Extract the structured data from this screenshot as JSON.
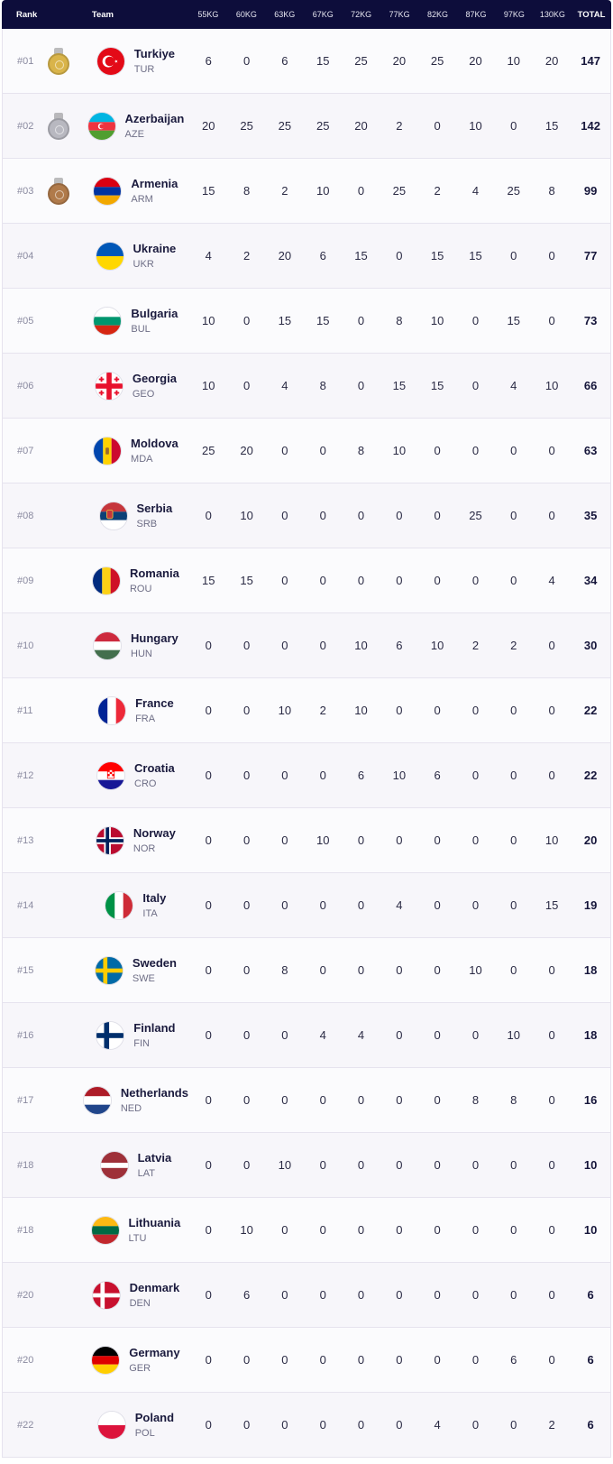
{
  "header": {
    "rank": "Rank",
    "team": "Team",
    "weights": [
      "55KG",
      "60KG",
      "63KG",
      "67KG",
      "72KG",
      "77KG",
      "82KG",
      "87KG",
      "97KG",
      "130KG"
    ],
    "total": "TOTAL"
  },
  "colors": {
    "header_bg": "#0d0d3b",
    "gold": "#d9b44a",
    "silver": "#b8b8c0",
    "bronze": "#b07a4a"
  },
  "rows": [
    {
      "rank": "#01",
      "medal": "gold",
      "name": "Turkiye",
      "code": "TUR",
      "flag": "tur",
      "scores": [
        "6",
        "0",
        "6",
        "15",
        "25",
        "20",
        "25",
        "20",
        "10",
        "20"
      ],
      "total": "147"
    },
    {
      "rank": "#02",
      "medal": "silver",
      "name": "Azerbaijan",
      "code": "AZE",
      "flag": "aze",
      "scores": [
        "20",
        "25",
        "25",
        "25",
        "20",
        "2",
        "0",
        "10",
        "0",
        "15"
      ],
      "total": "142"
    },
    {
      "rank": "#03",
      "medal": "bronze",
      "name": "Armenia",
      "code": "ARM",
      "flag": "arm",
      "scores": [
        "15",
        "8",
        "2",
        "10",
        "0",
        "25",
        "2",
        "4",
        "25",
        "8"
      ],
      "total": "99"
    },
    {
      "rank": "#04",
      "medal": "",
      "name": "Ukraine",
      "code": "UKR",
      "flag": "ukr",
      "scores": [
        "4",
        "2",
        "20",
        "6",
        "15",
        "0",
        "15",
        "15",
        "0",
        "0"
      ],
      "total": "77"
    },
    {
      "rank": "#05",
      "medal": "",
      "name": "Bulgaria",
      "code": "BUL",
      "flag": "bul",
      "scores": [
        "10",
        "0",
        "15",
        "15",
        "0",
        "8",
        "10",
        "0",
        "15",
        "0"
      ],
      "total": "73"
    },
    {
      "rank": "#06",
      "medal": "",
      "name": "Georgia",
      "code": "GEO",
      "flag": "geo",
      "scores": [
        "10",
        "0",
        "4",
        "8",
        "0",
        "15",
        "15",
        "0",
        "4",
        "10"
      ],
      "total": "66"
    },
    {
      "rank": "#07",
      "medal": "",
      "name": "Moldova",
      "code": "MDA",
      "flag": "mda",
      "scores": [
        "25",
        "20",
        "0",
        "0",
        "8",
        "10",
        "0",
        "0",
        "0",
        "0"
      ],
      "total": "63"
    },
    {
      "rank": "#08",
      "medal": "",
      "name": "Serbia",
      "code": "SRB",
      "flag": "srb",
      "scores": [
        "0",
        "10",
        "0",
        "0",
        "0",
        "0",
        "0",
        "25",
        "0",
        "0"
      ],
      "total": "35"
    },
    {
      "rank": "#09",
      "medal": "",
      "name": "Romania",
      "code": "ROU",
      "flag": "rou",
      "scores": [
        "15",
        "15",
        "0",
        "0",
        "0",
        "0",
        "0",
        "0",
        "0",
        "4"
      ],
      "total": "34"
    },
    {
      "rank": "#10",
      "medal": "",
      "name": "Hungary",
      "code": "HUN",
      "flag": "hun",
      "scores": [
        "0",
        "0",
        "0",
        "0",
        "10",
        "6",
        "10",
        "2",
        "2",
        "0"
      ],
      "total": "30"
    },
    {
      "rank": "#11",
      "medal": "",
      "name": "France",
      "code": "FRA",
      "flag": "fra",
      "scores": [
        "0",
        "0",
        "10",
        "2",
        "10",
        "0",
        "0",
        "0",
        "0",
        "0"
      ],
      "total": "22"
    },
    {
      "rank": "#12",
      "medal": "",
      "name": "Croatia",
      "code": "CRO",
      "flag": "cro",
      "scores": [
        "0",
        "0",
        "0",
        "0",
        "6",
        "10",
        "6",
        "0",
        "0",
        "0"
      ],
      "total": "22"
    },
    {
      "rank": "#13",
      "medal": "",
      "name": "Norway",
      "code": "NOR",
      "flag": "nor",
      "scores": [
        "0",
        "0",
        "0",
        "10",
        "0",
        "0",
        "0",
        "0",
        "0",
        "10"
      ],
      "total": "20"
    },
    {
      "rank": "#14",
      "medal": "",
      "name": "Italy",
      "code": "ITA",
      "flag": "ita",
      "scores": [
        "0",
        "0",
        "0",
        "0",
        "0",
        "4",
        "0",
        "0",
        "0",
        "15"
      ],
      "total": "19"
    },
    {
      "rank": "#15",
      "medal": "",
      "name": "Sweden",
      "code": "SWE",
      "flag": "swe",
      "scores": [
        "0",
        "0",
        "8",
        "0",
        "0",
        "0",
        "0",
        "10",
        "0",
        "0"
      ],
      "total": "18"
    },
    {
      "rank": "#16",
      "medal": "",
      "name": "Finland",
      "code": "FIN",
      "flag": "fin",
      "scores": [
        "0",
        "0",
        "0",
        "4",
        "4",
        "0",
        "0",
        "0",
        "10",
        "0"
      ],
      "total": "18"
    },
    {
      "rank": "#17",
      "medal": "",
      "name": "Netherlands",
      "code": "NED",
      "flag": "ned",
      "scores": [
        "0",
        "0",
        "0",
        "0",
        "0",
        "0",
        "0",
        "8",
        "8",
        "0"
      ],
      "total": "16"
    },
    {
      "rank": "#18",
      "medal": "",
      "name": "Latvia",
      "code": "LAT",
      "flag": "lat",
      "scores": [
        "0",
        "0",
        "10",
        "0",
        "0",
        "0",
        "0",
        "0",
        "0",
        "0"
      ],
      "total": "10"
    },
    {
      "rank": "#18",
      "medal": "",
      "name": "Lithuania",
      "code": "LTU",
      "flag": "ltu",
      "scores": [
        "0",
        "10",
        "0",
        "0",
        "0",
        "0",
        "0",
        "0",
        "0",
        "0"
      ],
      "total": "10"
    },
    {
      "rank": "#20",
      "medal": "",
      "name": "Denmark",
      "code": "DEN",
      "flag": "den",
      "scores": [
        "0",
        "6",
        "0",
        "0",
        "0",
        "0",
        "0",
        "0",
        "0",
        "0"
      ],
      "total": "6"
    },
    {
      "rank": "#20",
      "medal": "",
      "name": "Germany",
      "code": "GER",
      "flag": "ger",
      "scores": [
        "0",
        "0",
        "0",
        "0",
        "0",
        "0",
        "0",
        "0",
        "6",
        "0"
      ],
      "total": "6"
    },
    {
      "rank": "#22",
      "medal": "",
      "name": "Poland",
      "code": "POL",
      "flag": "pol",
      "scores": [
        "0",
        "0",
        "0",
        "0",
        "0",
        "0",
        "4",
        "0",
        "0",
        "2"
      ],
      "total": "6"
    }
  ]
}
